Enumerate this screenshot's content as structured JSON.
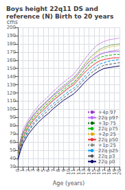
{
  "chart_data": {
    "type": "line",
    "title": "Boys height 22q11 DS and reference (N) Birth to 20 years",
    "xlabel": "Age (years)",
    "ylabel": "cms",
    "x": [
      0,
      0.5,
      1,
      2,
      3,
      4,
      5,
      6,
      7,
      8,
      9,
      10,
      11,
      12,
      13,
      14,
      15,
      16,
      17,
      18,
      19,
      20
    ],
    "xlim": [
      0,
      20
    ],
    "ylim": [
      30,
      200
    ],
    "xticks": [
      0,
      1,
      2,
      3,
      4,
      5,
      6,
      7,
      8,
      9,
      10,
      11,
      12,
      13,
      14,
      15,
      16,
      17,
      18,
      19,
      20
    ],
    "yticks": [
      30,
      40,
      50,
      60,
      70,
      80,
      90,
      100,
      110,
      120,
      130,
      140,
      150,
      160,
      170,
      180,
      190,
      200
    ],
    "grid": true,
    "legend": "lower right",
    "series": [
      {
        "name": "+4p 97",
        "color": "#9933cc",
        "line_style": "dotted",
        "values": [
          49,
          63,
          75,
          87,
          96,
          104,
          110,
          116,
          122,
          128,
          133,
          138,
          143,
          151,
          160,
          168,
          175,
          180,
          183,
          185,
          186,
          187
        ]
      },
      {
        "name": "22q p97",
        "color": "#bb66ff",
        "line_style": "solid",
        "values": [
          47,
          60,
          71,
          83,
          92,
          99,
          105,
          111,
          117,
          122,
          127,
          132,
          137,
          144,
          151,
          158,
          163,
          167,
          169,
          170,
          171,
          171
        ]
      },
      {
        "name": "+3p 75",
        "color": "#006600",
        "line_style": "dotted",
        "values": [
          47,
          60,
          71,
          84,
          93,
          100,
          106,
          112,
          118,
          124,
          129,
          134,
          139,
          146,
          154,
          162,
          168,
          173,
          176,
          178,
          179,
          180
        ]
      },
      {
        "name": "22q p75",
        "color": "#00bb00",
        "line_style": "dashed",
        "values": [
          45,
          57,
          68,
          80,
          89,
          96,
          102,
          108,
          114,
          119,
          124,
          129,
          133,
          140,
          147,
          154,
          159,
          163,
          165,
          166,
          167,
          167
        ]
      },
      {
        "name": "+2p 25",
        "color": "#ddaa00",
        "line_style": "dotted",
        "values": [
          45,
          58,
          69,
          81,
          90,
          97,
          103,
          109,
          115,
          121,
          126,
          131,
          136,
          143,
          152,
          159,
          166,
          171,
          174,
          176,
          177,
          178
        ]
      },
      {
        "name": "22q p50",
        "color": "#ee3333",
        "line_style": "solid",
        "values": [
          43,
          55,
          65,
          77,
          86,
          93,
          99,
          105,
          111,
          116,
          121,
          126,
          130,
          137,
          144,
          150,
          155,
          159,
          161,
          162,
          163,
          163
        ]
      },
      {
        "name": "+1p 25",
        "color": "#888888",
        "line_style": "dotted",
        "values": [
          43,
          55,
          66,
          78,
          87,
          94,
          100,
          106,
          112,
          117,
          122,
          127,
          132,
          139,
          147,
          155,
          161,
          166,
          169,
          171,
          172,
          173
        ]
      },
      {
        "name": "22q p25",
        "color": "#0099ee",
        "line_style": "dashed",
        "values": [
          41,
          53,
          62,
          74,
          83,
          90,
          96,
          102,
          107,
          112,
          117,
          122,
          126,
          132,
          139,
          146,
          151,
          155,
          157,
          159,
          160,
          161
        ]
      },
      {
        "name": "22q p3",
        "color": "#555555",
        "line_style": "dashed",
        "values": [
          40,
          51,
          61,
          72,
          81,
          88,
          93,
          99,
          104,
          109,
          114,
          119,
          123,
          129,
          136,
          142,
          147,
          151,
          154,
          155,
          156,
          157
        ]
      },
      {
        "name": "22q p0",
        "color": "#000066",
        "line_style": "solid",
        "values": [
          38,
          49,
          58,
          69,
          77,
          84,
          90,
          95,
          101,
          106,
          111,
          115,
          119,
          125,
          132,
          138,
          143,
          147,
          150,
          151,
          152,
          153
        ]
      }
    ]
  }
}
